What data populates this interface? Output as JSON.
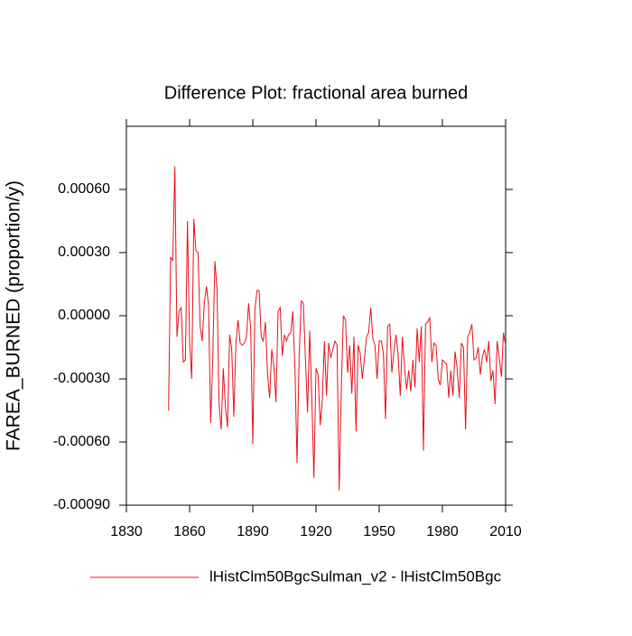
{
  "chart_data": {
    "type": "line",
    "title": "Difference Plot: fractional area burned",
    "y_label": "FAREA_BURNED  (proportion/y)",
    "x": [
      1850,
      1851,
      1852,
      1853,
      1854,
      1855,
      1856,
      1857,
      1858,
      1859,
      1860,
      1861,
      1862,
      1863,
      1864,
      1865,
      1866,
      1867,
      1868,
      1869,
      1870,
      1871,
      1872,
      1873,
      1874,
      1875,
      1876,
      1877,
      1878,
      1879,
      1880,
      1881,
      1882,
      1883,
      1884,
      1885,
      1886,
      1887,
      1888,
      1889,
      1890,
      1891,
      1892,
      1893,
      1894,
      1895,
      1896,
      1897,
      1898,
      1899,
      1900,
      1901,
      1902,
      1903,
      1904,
      1905,
      1906,
      1907,
      1908,
      1909,
      1910,
      1911,
      1912,
      1913,
      1914,
      1915,
      1916,
      1917,
      1918,
      1919,
      1920,
      1921,
      1922,
      1923,
      1924,
      1925,
      1926,
      1927,
      1928,
      1929,
      1930,
      1931,
      1932,
      1933,
      1934,
      1935,
      1936,
      1937,
      1938,
      1939,
      1940,
      1941,
      1942,
      1943,
      1944,
      1945,
      1946,
      1947,
      1948,
      1949,
      1950,
      1951,
      1952,
      1953,
      1954,
      1955,
      1956,
      1957,
      1958,
      1959,
      1960,
      1961,
      1962,
      1963,
      1964,
      1965,
      1966,
      1967,
      1968,
      1969,
      1970,
      1971,
      1972,
      1973,
      1974,
      1975,
      1976,
      1977,
      1978,
      1979,
      1980,
      1981,
      1982,
      1983,
      1984,
      1985,
      1986,
      1987,
      1988,
      1989,
      1990,
      1991,
      1992,
      1993,
      1994,
      1995,
      1996,
      1997,
      1998,
      1999,
      2000,
      2001,
      2002,
      2003,
      2004,
      2005,
      2006,
      2007,
      2008,
      2009,
      2010
    ],
    "series": [
      {
        "name": "lHistClm50BgcSulman_v2 - lHistClm50Bgc",
        "color": "#e8101a",
        "values": [
          -0.00045,
          0.00028,
          0.00026,
          0.00071,
          -0.0001,
          2e-05,
          4e-05,
          -0.00022,
          -0.00021,
          0.00045,
          -0.00012,
          -0.0003,
          0.00046,
          0.00031,
          0.0003,
          -5e-05,
          -0.00012,
          6e-05,
          0.00014,
          5e-05,
          -0.00051,
          -0.0002,
          0.00026,
          0.00013,
          -0.00042,
          -0.00054,
          -0.00025,
          -0.00043,
          -0.00053,
          -9e-05,
          -0.00016,
          -0.00048,
          -0.00013,
          -2e-05,
          -0.00013,
          -0.00014,
          -0.00013,
          -0.0001,
          6e-05,
          -6e-05,
          -0.00061,
          3e-05,
          0.00012,
          0.00012,
          -0.0001,
          -0.00012,
          -3e-05,
          -0.00028,
          -0.00039,
          -0.00016,
          -0.00024,
          -0.00041,
          2e-05,
          4e-05,
          -0.00019,
          -9e-05,
          -0.00012,
          -9e-05,
          -8e-05,
          2e-05,
          -0.00025,
          -0.0007,
          -0.00019,
          7e-05,
          6e-05,
          -0.00021,
          -0.00046,
          -7e-05,
          -0.00039,
          -0.00077,
          -0.00025,
          -0.00028,
          -0.00052,
          -0.0004,
          -0.00012,
          -0.00038,
          -0.00013,
          -0.0002,
          -0.00016,
          -0.00012,
          -0.00014,
          -0.00083,
          -0.00035,
          0.0,
          -2e-05,
          -0.00027,
          -0.00014,
          -0.00037,
          -0.0001,
          -0.00055,
          -0.00014,
          -0.00018,
          -0.0003,
          -0.0002,
          -0.0001,
          -8e-05,
          4e-05,
          -0.00011,
          -0.00014,
          -0.0003,
          -0.00012,
          -0.00012,
          -0.00018,
          -0.00049,
          -5e-05,
          -4e-05,
          -0.00027,
          -0.00017,
          -9e-05,
          -0.00019,
          -0.00038,
          -0.0001,
          -0.00024,
          -0.00035,
          -0.00026,
          -0.00036,
          -0.00021,
          -0.00034,
          -6e-05,
          -0.00022,
          -5e-05,
          -0.00064,
          -4e-05,
          -3e-05,
          -1e-05,
          -0.00022,
          -0.00013,
          -0.00014,
          -0.0003,
          -0.00033,
          -0.00021,
          -0.00022,
          -0.00023,
          -0.00039,
          -0.00026,
          -0.00038,
          -0.00017,
          -0.00025,
          -0.00039,
          -0.00013,
          -0.00015,
          -0.00054,
          -0.0001,
          -8e-05,
          -4e-05,
          -0.00021,
          -0.0002,
          -0.00015,
          -0.00028,
          -0.00019,
          -0.00016,
          -0.00022,
          -0.00012,
          -0.00031,
          -0.00026,
          -0.00042,
          -0.00012,
          -0.0002,
          -0.00029,
          -8e-05,
          -0.00014
        ]
      }
    ],
    "xlim": [
      1830,
      2010
    ],
    "xticks": [
      1830,
      1860,
      1890,
      1920,
      1950,
      1980,
      2010
    ],
    "ylim": [
      -0.0009,
      0.0009
    ],
    "yticks": [
      {
        "value": -0.0009,
        "label": "-0.00090"
      },
      {
        "value": -0.0006,
        "label": "-0.00060"
      },
      {
        "value": -0.0003,
        "label": "-0.00030"
      },
      {
        "value": 0,
        "label": "0.00000"
      },
      {
        "value": 0.0003,
        "label": "0.00030"
      },
      {
        "value": 0.0006,
        "label": "0.00060"
      }
    ],
    "grid": false,
    "legend": "bottom"
  }
}
